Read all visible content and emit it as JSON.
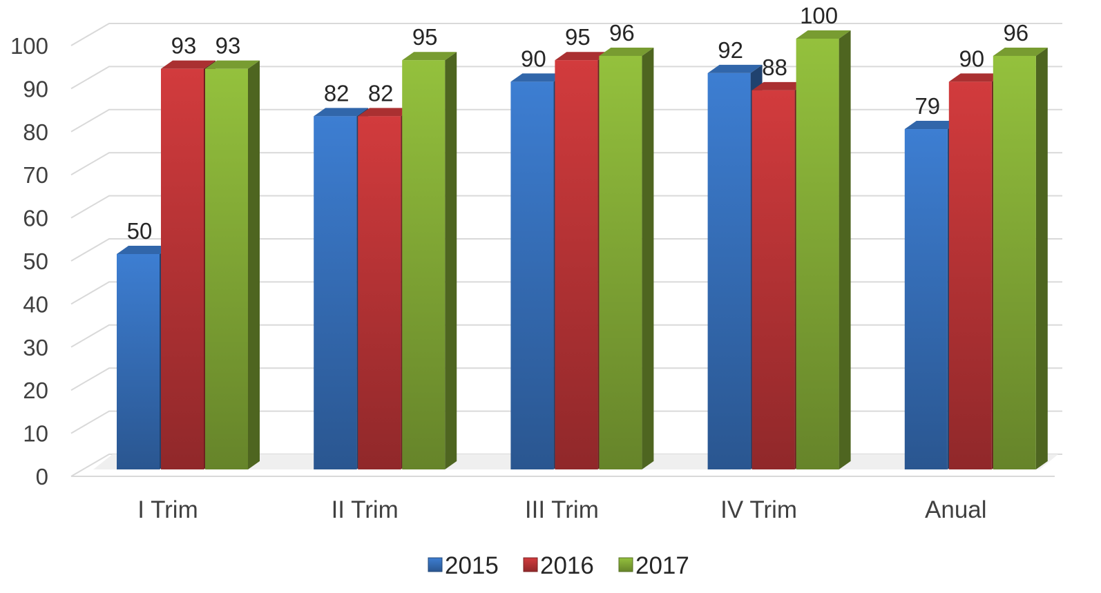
{
  "chart_data": {
    "type": "bar",
    "style": "3d-clustered-column",
    "categories": [
      "I Trim",
      "II Trim",
      "III Trim",
      "IV Trim",
      "Anual"
    ],
    "series": [
      {
        "name": "2015",
        "values": [
          50,
          82,
          90,
          92,
          79
        ],
        "color": "#3A78C8"
      },
      {
        "name": "2016",
        "values": [
          93,
          82,
          95,
          88,
          90
        ],
        "color": "#C8383A"
      },
      {
        "name": "2017",
        "values": [
          93,
          95,
          96,
          100,
          96
        ],
        "color": "#8DB83A"
      }
    ],
    "ylim": [
      0,
      100
    ],
    "yticks": [
      0,
      10,
      20,
      30,
      40,
      50,
      60,
      70,
      80,
      90,
      100
    ],
    "grid": true,
    "legend_position": "bottom",
    "data_labels": true
  }
}
